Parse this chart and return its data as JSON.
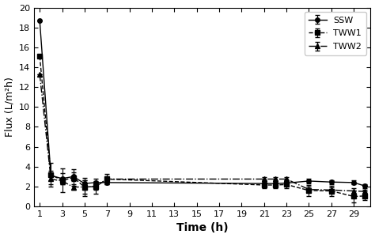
{
  "SSW": {
    "x": [
      1,
      2,
      3,
      4,
      5,
      6,
      7,
      21,
      22,
      23,
      25,
      27,
      29,
      30
    ],
    "y": [
      18.7,
      3.1,
      2.8,
      3.0,
      2.3,
      2.4,
      2.4,
      2.3,
      2.3,
      2.35,
      2.55,
      2.45,
      2.4,
      2.05
    ],
    "yerr": [
      0.0,
      0.5,
      0.55,
      0.45,
      0.3,
      0.15,
      0.15,
      0.25,
      0.25,
      0.25,
      0.25,
      0.2,
      0.2,
      0.2
    ],
    "linestyle": "-",
    "marker": "o",
    "color": "#000000",
    "label": "SSW"
  },
  "TWW1": {
    "x": [
      1,
      2,
      3,
      4,
      5,
      6,
      7,
      21,
      22,
      23,
      25,
      27,
      29,
      30
    ],
    "y": [
      15.1,
      3.2,
      2.6,
      2.9,
      1.95,
      2.0,
      2.75,
      2.15,
      2.15,
      2.2,
      1.6,
      1.55,
      1.0,
      1.05
    ],
    "yerr": [
      0.0,
      1.2,
      1.2,
      0.85,
      0.9,
      0.75,
      0.55,
      0.35,
      0.35,
      0.35,
      0.55,
      0.5,
      0.6,
      0.45
    ],
    "linestyle": "--",
    "marker": "s",
    "color": "#000000",
    "label": "TWW1"
  },
  "TWW2": {
    "x": [
      1,
      2,
      3,
      4,
      5,
      6,
      7,
      21,
      22,
      23,
      25,
      27,
      29,
      30
    ],
    "y": [
      13.3,
      2.75,
      2.55,
      1.95,
      1.95,
      2.0,
      2.75,
      2.75,
      2.75,
      2.75,
      1.7,
      1.65,
      1.55,
      1.5
    ],
    "yerr": [
      0.0,
      0.5,
      0.35,
      0.25,
      0.7,
      0.3,
      0.25,
      0.2,
      0.2,
      0.2,
      0.3,
      0.25,
      0.25,
      0.2
    ],
    "linestyle": "-.",
    "marker": "^",
    "color": "#000000",
    "label": "TWW2"
  },
  "xlabel": "Time (h)",
  "ylabel": "Flux (L/m²h)",
  "ylim": [
    0,
    20
  ],
  "yticks": [
    0,
    2,
    4,
    6,
    8,
    10,
    12,
    14,
    16,
    18,
    20
  ],
  "xticks": [
    1,
    3,
    5,
    7,
    9,
    11,
    13,
    15,
    17,
    19,
    21,
    23,
    25,
    27,
    29
  ],
  "xlim": [
    0.5,
    30.5
  ],
  "background_color": "#ffffff",
  "legend_loc": "upper right"
}
